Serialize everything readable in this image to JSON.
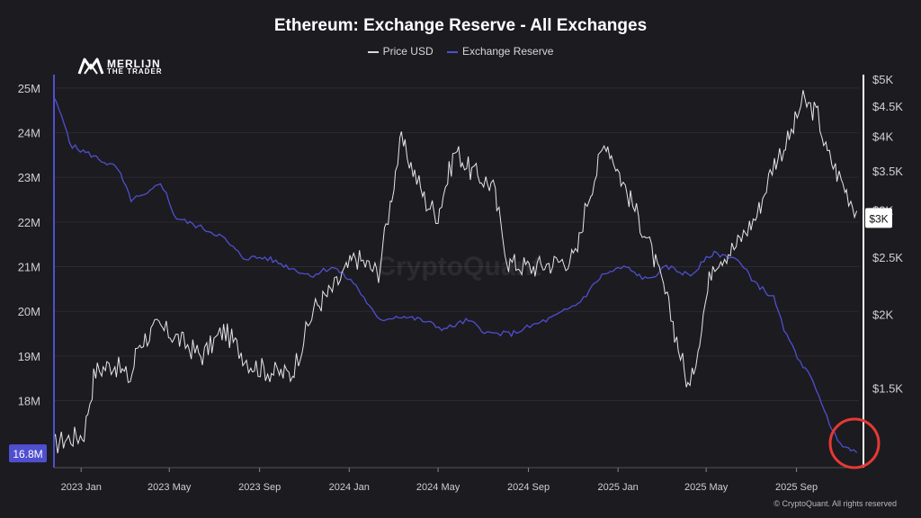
{
  "title": "Ethereum: Exchange Reserve - All Exchanges",
  "legend": [
    {
      "label": "Price USD",
      "color": "#d9d9d9"
    },
    {
      "label": "Exchange Reserve",
      "color": "#4f4fd0"
    }
  ],
  "watermark": "CryptoQuant",
  "logo": {
    "line1": "MERLIJN",
    "line2": "THE TRADER",
    "icon": "merlijn-logo-icon"
  },
  "footer": "© CryptoQuant. All rights reserved",
  "colors": {
    "background": "#1c1b20",
    "reserve": "#4f4fd0",
    "price": "#e6e6e6",
    "highlight_circle": "#e53935"
  },
  "chart_data": {
    "type": "line",
    "title": "Ethereum: Exchange Reserve - All Exchanges",
    "x_ticks": [
      "2023 Jan",
      "2023 May",
      "2023 Sep",
      "2024 Jan",
      "2024 May",
      "2024 Sep",
      "2025 Jan",
      "2025 May",
      "2025 Sep"
    ],
    "x_range": [
      "2022-11-25",
      "2025-11-25"
    ],
    "left_axis": {
      "ticks": [
        "25M",
        "24M",
        "23M",
        "22M",
        "21M",
        "20M",
        "19M",
        "18M"
      ],
      "range": [
        16.5,
        25.2
      ],
      "unit": "M ETH"
    },
    "right_axis": {
      "ticks": [
        "$5K",
        "$4.5K",
        "$4K",
        "$3.5K",
        "$3K",
        "$2.5K",
        "$2K",
        "$1.5K"
      ],
      "range": [
        1100,
        5000
      ],
      "scale": "log",
      "unit": "USD"
    },
    "current_labels": {
      "reserve": "16.8M",
      "price": "$3K"
    },
    "series": [
      {
        "name": "Exchange Reserve",
        "axis": "left",
        "x": [
          "2022-11-25",
          "2022-12-05",
          "2022-12-20",
          "2023-01-15",
          "2023-02-20",
          "2023-03-10",
          "2023-04-01",
          "2023-04-20",
          "2023-05-10",
          "2023-06-10",
          "2023-07-10",
          "2023-08-10",
          "2023-09-10",
          "2023-10-10",
          "2023-11-10",
          "2023-12-10",
          "2024-01-10",
          "2024-02-10",
          "2024-03-10",
          "2024-04-10",
          "2024-05-10",
          "2024-06-10",
          "2024-07-10",
          "2024-08-10",
          "2024-09-10",
          "2024-10-10",
          "2024-11-10",
          "2024-12-10",
          "2025-01-10",
          "2025-02-10",
          "2025-03-10",
          "2025-04-10",
          "2025-05-10",
          "2025-06-10",
          "2025-07-10",
          "2025-08-01",
          "2025-08-20",
          "2025-09-10",
          "2025-10-01",
          "2025-10-20",
          "2025-11-05",
          "2025-11-22"
        ],
        "values": [
          24.8,
          24.4,
          23.7,
          23.5,
          23.2,
          22.5,
          22.6,
          22.9,
          22.1,
          21.9,
          21.7,
          21.2,
          21.2,
          21.0,
          20.8,
          21.0,
          20.6,
          19.8,
          19.9,
          19.8,
          19.6,
          19.8,
          19.5,
          19.5,
          19.7,
          19.9,
          20.2,
          20.8,
          21.0,
          20.7,
          21.0,
          20.8,
          21.3,
          21.2,
          20.6,
          20.3,
          19.4,
          18.8,
          18.2,
          17.3,
          17.0,
          16.8
        ]
      },
      {
        "name": "Price USD",
        "axis": "right",
        "x": [
          "2022-11-25",
          "2022-12-10",
          "2023-01-05",
          "2023-01-20",
          "2023-02-15",
          "2023-03-10",
          "2023-03-20",
          "2023-04-15",
          "2023-05-05",
          "2023-06-15",
          "2023-07-15",
          "2023-08-20",
          "2023-09-15",
          "2023-10-15",
          "2023-11-15",
          "2023-12-10",
          "2024-01-10",
          "2024-02-10",
          "2024-03-12",
          "2024-04-15",
          "2024-05-01",
          "2024-05-25",
          "2024-06-15",
          "2024-07-15",
          "2024-08-05",
          "2024-09-05",
          "2024-10-10",
          "2024-11-05",
          "2024-11-20",
          "2024-12-16",
          "2025-01-10",
          "2025-02-10",
          "2025-03-10",
          "2025-04-09",
          "2025-05-10",
          "2025-06-10",
          "2025-07-10",
          "2025-08-01",
          "2025-08-24",
          "2025-09-10",
          "2025-10-01",
          "2025-10-11",
          "2025-11-05",
          "2025-11-22"
        ],
        "values": [
          1200,
          1230,
          1250,
          1600,
          1650,
          1550,
          1780,
          1900,
          1850,
          1700,
          1880,
          1650,
          1600,
          1580,
          2050,
          2200,
          2500,
          2350,
          3950,
          3100,
          2950,
          3800,
          3500,
          3300,
          2450,
          2400,
          2450,
          2500,
          3100,
          3950,
          3300,
          2700,
          2100,
          1480,
          2450,
          2600,
          2950,
          3600,
          4000,
          4600,
          4350,
          3800,
          3300,
          3000
        ]
      }
    ]
  }
}
